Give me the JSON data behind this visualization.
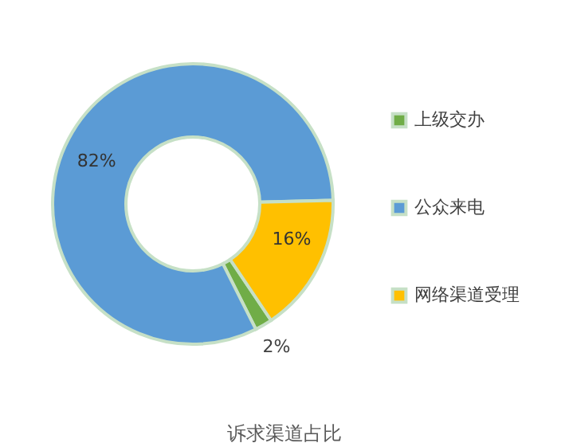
{
  "chart_data": {
    "type": "donut",
    "title": "诉求渠道占比",
    "categories": [
      "上级交办",
      "公众来电",
      "网络渠道受理"
    ],
    "values": [
      2,
      82,
      16
    ],
    "colors": [
      "#70ad47",
      "#5b9bd5",
      "#ffc000"
    ],
    "value_labels": [
      "2%",
      "82%",
      "16%"
    ],
    "legend": "right"
  }
}
